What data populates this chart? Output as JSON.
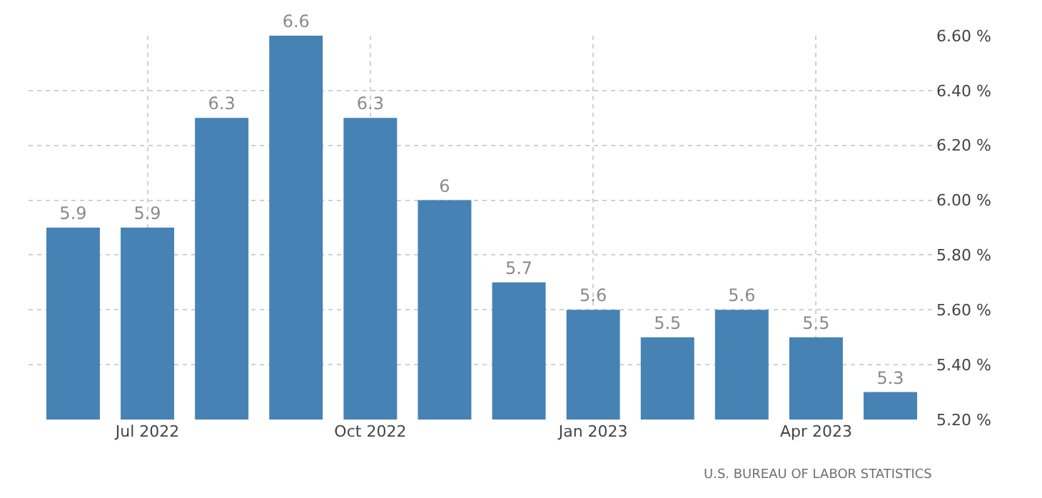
{
  "chart_data": {
    "type": "bar",
    "categories": [
      null,
      "Jul 2022",
      null,
      null,
      "Oct 2022",
      null,
      null,
      "Jan 2023",
      null,
      null,
      "Apr 2023",
      null
    ],
    "values": [
      5.9,
      5.9,
      6.3,
      6.6,
      6.3,
      6,
      5.7,
      5.6,
      5.5,
      5.6,
      5.5,
      5.3
    ],
    "value_labels": [
      "5.9",
      "5.9",
      "6.3",
      "6.6",
      "6.3",
      "6",
      "5.7",
      "5.6",
      "5.5",
      "5.6",
      "5.5",
      "5.3"
    ],
    "color": "#4682b4",
    "ylim": [
      5.2,
      6.6
    ],
    "yticks": [
      {
        "value": 5.2,
        "label": "5.20 %"
      },
      {
        "value": 5.4,
        "label": "5.40 %"
      },
      {
        "value": 5.6,
        "label": "5.60 %"
      },
      {
        "value": 5.8,
        "label": "5.80 %"
      },
      {
        "value": 6.0,
        "label": "6.00 %"
      },
      {
        "value": 6.2,
        "label": "6.20 %"
      },
      {
        "value": 6.4,
        "label": "6.40 %"
      },
      {
        "value": 6.6,
        "label": "6.60 %"
      }
    ],
    "grid": true,
    "annotations": [
      "U.S. BUREAU OF LABOR STATISTICS"
    ]
  }
}
